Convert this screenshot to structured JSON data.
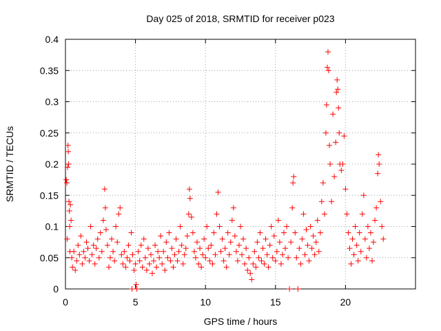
{
  "chart_data": {
    "type": "scatter",
    "title": "Day 025 of 2018, SRMTID for receiver p023",
    "xlabel": "GPS time / hours",
    "ylabel": "SRMTID / TECUs",
    "xlim": [
      0,
      25
    ],
    "ylim": [
      0,
      0.4
    ],
    "x_ticks": [
      0,
      5,
      10,
      15,
      20
    ],
    "x_tick_labels": [
      "0",
      "5",
      "10",
      "15",
      "20"
    ],
    "y_ticks": [
      0,
      0.05,
      0.1,
      0.15,
      0.2,
      0.25,
      0.3,
      0.35,
      0.4
    ],
    "y_tick_labels": [
      "0",
      "0.05",
      "0.1",
      "0.15",
      "0.2",
      "0.25",
      "0.3",
      "0.35",
      "0.4"
    ],
    "grid": true,
    "marker": "+",
    "color": "#ff0000",
    "series": [
      {
        "name": "SRMTID",
        "color": "#ff0000",
        "points": [
          [
            0.05,
            0.175
          ],
          [
            0.1,
            0.17
          ],
          [
            0.12,
            0.08
          ],
          [
            0.15,
            0.195
          ],
          [
            0.18,
            0.23
          ],
          [
            0.2,
            0.22
          ],
          [
            0.22,
            0.2
          ],
          [
            0.25,
            0.14
          ],
          [
            0.28,
            0.125
          ],
          [
            0.3,
            0.1
          ],
          [
            0.32,
            0.06
          ],
          [
            0.35,
            0.135
          ],
          [
            0.4,
            0.11
          ],
          [
            0.45,
            0.05
          ],
          [
            0.5,
            0.035
          ],
          [
            0.6,
            0.06
          ],
          [
            0.7,
            0.03
          ],
          [
            0.8,
            0.045
          ],
          [
            0.9,
            0.07
          ],
          [
            1.0,
            0.055
          ],
          [
            1.1,
            0.085
          ],
          [
            1.2,
            0.04
          ],
          [
            1.3,
            0.06
          ],
          [
            1.4,
            0.05
          ],
          [
            1.5,
            0.075
          ],
          [
            1.6,
            0.065
          ],
          [
            1.7,
            0.045
          ],
          [
            1.8,
            0.1
          ],
          [
            1.9,
            0.055
          ],
          [
            2.0,
            0.07
          ],
          [
            2.1,
            0.04
          ],
          [
            2.2,
            0.065
          ],
          [
            2.3,
            0.08
          ],
          [
            2.4,
            0.05
          ],
          [
            2.5,
            0.09
          ],
          [
            2.6,
            0.06
          ],
          [
            2.7,
            0.11
          ],
          [
            2.8,
            0.16
          ],
          [
            2.85,
            0.13
          ],
          [
            2.9,
            0.095
          ],
          [
            3.0,
            0.07
          ],
          [
            3.1,
            0.035
          ],
          [
            3.2,
            0.05
          ],
          [
            3.3,
            0.08
          ],
          [
            3.4,
            0.06
          ],
          [
            3.5,
            0.045
          ],
          [
            3.6,
            0.1
          ],
          [
            3.7,
            0.075
          ],
          [
            3.8,
            0.12
          ],
          [
            3.9,
            0.13
          ],
          [
            4.0,
            0.055
          ],
          [
            4.1,
            0.04
          ],
          [
            4.2,
            0.06
          ],
          [
            4.3,
            0.035
          ],
          [
            4.4,
            0.05
          ],
          [
            4.5,
            0.07
          ],
          [
            4.6,
            0.045
          ],
          [
            4.7,
            0.09
          ],
          [
            4.75,
            0.0
          ],
          [
            4.8,
            0.055
          ],
          [
            4.9,
            0.03
          ],
          [
            5.0,
            0.04
          ],
          [
            5.05,
            0.007
          ],
          [
            5.1,
            0.0
          ],
          [
            5.2,
            0.06
          ],
          [
            5.3,
            0.045
          ],
          [
            5.4,
            0.07
          ],
          [
            5.5,
            0.035
          ],
          [
            5.6,
            0.08
          ],
          [
            5.7,
            0.05
          ],
          [
            5.8,
            0.03
          ],
          [
            5.9,
            0.065
          ],
          [
            6.0,
            0.04
          ],
          [
            6.1,
            0.055
          ],
          [
            6.2,
            0.025
          ],
          [
            6.3,
            0.045
          ],
          [
            6.4,
            0.07
          ],
          [
            6.5,
            0.035
          ],
          [
            6.6,
            0.06
          ],
          [
            6.7,
            0.05
          ],
          [
            6.8,
            0.085
          ],
          [
            6.9,
            0.04
          ],
          [
            7.0,
            0.06
          ],
          [
            7.1,
            0.03
          ],
          [
            7.2,
            0.075
          ],
          [
            7.3,
            0.05
          ],
          [
            7.4,
            0.09
          ],
          [
            7.5,
            0.045
          ],
          [
            7.6,
            0.065
          ],
          [
            7.7,
            0.035
          ],
          [
            7.8,
            0.055
          ],
          [
            7.9,
            0.08
          ],
          [
            8.0,
            0.045
          ],
          [
            8.1,
            0.06
          ],
          [
            8.2,
            0.1
          ],
          [
            8.3,
            0.07
          ],
          [
            8.4,
            0.04
          ],
          [
            8.5,
            0.055
          ],
          [
            8.6,
            0.065
          ],
          [
            8.7,
            0.085
          ],
          [
            8.8,
            0.12
          ],
          [
            8.85,
            0.16
          ],
          [
            8.9,
            0.145
          ],
          [
            9.0,
            0.115
          ],
          [
            9.1,
            0.09
          ],
          [
            9.2,
            0.06
          ],
          [
            9.3,
            0.05
          ],
          [
            9.4,
            0.075
          ],
          [
            9.5,
            0.04
          ],
          [
            9.6,
            0.065
          ],
          [
            9.7,
            0.035
          ],
          [
            9.8,
            0.055
          ],
          [
            9.9,
            0.08
          ],
          [
            10.0,
            0.05
          ],
          [
            10.1,
            0.1
          ],
          [
            10.2,
            0.065
          ],
          [
            10.3,
            0.045
          ],
          [
            10.4,
            0.07
          ],
          [
            10.5,
            0.04
          ],
          [
            10.6,
            0.09
          ],
          [
            10.7,
            0.055
          ],
          [
            10.8,
            0.12
          ],
          [
            10.9,
            0.155
          ],
          [
            11.0,
            0.1
          ],
          [
            11.1,
            0.06
          ],
          [
            11.2,
            0.08
          ],
          [
            11.3,
            0.045
          ],
          [
            11.4,
            0.065
          ],
          [
            11.5,
            0.035
          ],
          [
            11.6,
            0.09
          ],
          [
            11.7,
            0.055
          ],
          [
            11.8,
            0.075
          ],
          [
            11.9,
            0.11
          ],
          [
            12.0,
            0.13
          ],
          [
            12.1,
            0.085
          ],
          [
            12.2,
            0.06
          ],
          [
            12.3,
            0.045
          ],
          [
            12.4,
            0.07
          ],
          [
            12.5,
            0.1
          ],
          [
            12.6,
            0.055
          ],
          [
            12.7,
            0.08
          ],
          [
            12.8,
            0.04
          ],
          [
            12.9,
            0.065
          ],
          [
            13.0,
            0.03
          ],
          [
            13.1,
            0.05
          ],
          [
            13.2,
            0.025
          ],
          [
            13.3,
            0.015
          ],
          [
            13.4,
            0.04
          ],
          [
            13.5,
            0.06
          ],
          [
            13.6,
            0.035
          ],
          [
            13.7,
            0.075
          ],
          [
            13.8,
            0.05
          ],
          [
            13.9,
            0.09
          ],
          [
            14.0,
            0.045
          ],
          [
            14.1,
            0.065
          ],
          [
            14.2,
            0.04
          ],
          [
            14.3,
            0.08
          ],
          [
            14.4,
            0.055
          ],
          [
            14.5,
            0.035
          ],
          [
            14.6,
            0.07
          ],
          [
            14.7,
            0.1
          ],
          [
            14.8,
            0.05
          ],
          [
            14.9,
            0.085
          ],
          [
            15.0,
            0.045
          ],
          [
            15.1,
            0.06
          ],
          [
            15.2,
            0.11
          ],
          [
            15.3,
            0.075
          ],
          [
            15.4,
            0.04
          ],
          [
            15.5,
            0.055
          ],
          [
            15.6,
            0.09
          ],
          [
            15.7,
            0.065
          ],
          [
            15.8,
            0.1
          ],
          [
            15.9,
            0.05
          ],
          [
            16.0,
            0.0
          ],
          [
            16.1,
            0.075
          ],
          [
            16.2,
            0.13
          ],
          [
            16.25,
            0.17
          ],
          [
            16.3,
            0.18
          ],
          [
            16.4,
            0.09
          ],
          [
            16.5,
            0.05
          ],
          [
            16.6,
            0.0
          ],
          [
            16.7,
            0.065
          ],
          [
            16.8,
            0.04
          ],
          [
            16.9,
            0.08
          ],
          [
            17.0,
            0.12
          ],
          [
            17.1,
            0.055
          ],
          [
            17.2,
            0.095
          ],
          [
            17.3,
            0.07
          ],
          [
            17.4,
            0.045
          ],
          [
            17.5,
            0.1
          ],
          [
            17.6,
            0.065
          ],
          [
            17.7,
            0.085
          ],
          [
            17.8,
            0.055
          ],
          [
            17.9,
            0.075
          ],
          [
            18.0,
            0.11
          ],
          [
            18.1,
            0.06
          ],
          [
            18.2,
            0.09
          ],
          [
            18.3,
            0.14
          ],
          [
            18.4,
            0.17
          ],
          [
            18.5,
            0.12
          ],
          [
            18.6,
            0.25
          ],
          [
            18.65,
            0.295
          ],
          [
            18.7,
            0.355
          ],
          [
            18.75,
            0.38
          ],
          [
            18.8,
            0.35
          ],
          [
            18.85,
            0.23
          ],
          [
            18.9,
            0.2
          ],
          [
            19.0,
            0.14
          ],
          [
            19.1,
            0.28
          ],
          [
            19.2,
            0.18
          ],
          [
            19.3,
            0.235
          ],
          [
            19.35,
            0.315
          ],
          [
            19.4,
            0.335
          ],
          [
            19.45,
            0.32
          ],
          [
            19.5,
            0.29
          ],
          [
            19.55,
            0.25
          ],
          [
            19.6,
            0.2
          ],
          [
            19.7,
            0.19
          ],
          [
            19.8,
            0.2
          ],
          [
            19.9,
            0.245
          ],
          [
            20.0,
            0.16
          ],
          [
            20.1,
            0.12
          ],
          [
            20.2,
            0.09
          ],
          [
            20.3,
            0.065
          ],
          [
            20.4,
            0.04
          ],
          [
            20.5,
            0.08
          ],
          [
            20.6,
            0.055
          ],
          [
            20.7,
            0.1
          ],
          [
            20.8,
            0.07
          ],
          [
            20.9,
            0.045
          ],
          [
            21.0,
            0.09
          ],
          [
            21.1,
            0.06
          ],
          [
            21.2,
            0.12
          ],
          [
            21.3,
            0.15
          ],
          [
            21.4,
            0.08
          ],
          [
            21.5,
            0.05
          ],
          [
            21.6,
            0.1
          ],
          [
            21.7,
            0.065
          ],
          [
            21.8,
            0.09
          ],
          [
            21.9,
            0.045
          ],
          [
            22.0,
            0.075
          ],
          [
            22.1,
            0.11
          ],
          [
            22.2,
            0.13
          ],
          [
            22.3,
            0.185
          ],
          [
            22.35,
            0.215
          ],
          [
            22.4,
            0.2
          ],
          [
            22.5,
            0.14
          ],
          [
            22.6,
            0.1
          ],
          [
            22.7,
            0.08
          ]
        ]
      }
    ]
  }
}
